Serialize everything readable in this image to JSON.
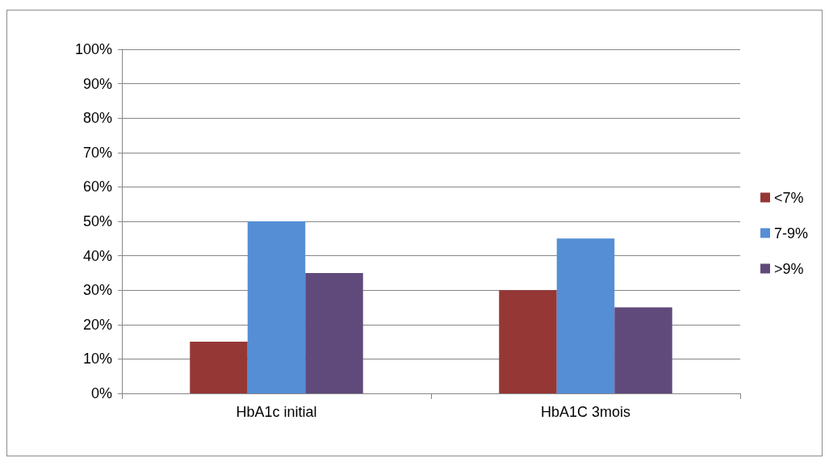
{
  "chart_data": {
    "type": "bar",
    "categories": [
      "HbA1c initial",
      "HbA1C 3mois"
    ],
    "series": [
      {
        "name": "<7%",
        "color": "#953735",
        "values": [
          15,
          30
        ]
      },
      {
        "name": "7-9%",
        "color": "#558ed5",
        "values": [
          50,
          45
        ]
      },
      {
        "name": ">9%",
        "color": "#604a7b",
        "values": [
          35,
          25
        ]
      }
    ],
    "ylim": [
      0,
      100
    ],
    "yticks": [
      {
        "value": 0,
        "label": "0%"
      },
      {
        "value": 10,
        "label": "10%"
      },
      {
        "value": 20,
        "label": "20%"
      },
      {
        "value": 30,
        "label": "30%"
      },
      {
        "value": 40,
        "label": "40%"
      },
      {
        "value": 50,
        "label": "50%"
      },
      {
        "value": 60,
        "label": "60%"
      },
      {
        "value": 70,
        "label": "70%"
      },
      {
        "value": 80,
        "label": "80%"
      },
      {
        "value": 90,
        "label": "90%"
      },
      {
        "value": 100,
        "label": "100%"
      }
    ],
    "grid": "y",
    "legend": "right"
  }
}
